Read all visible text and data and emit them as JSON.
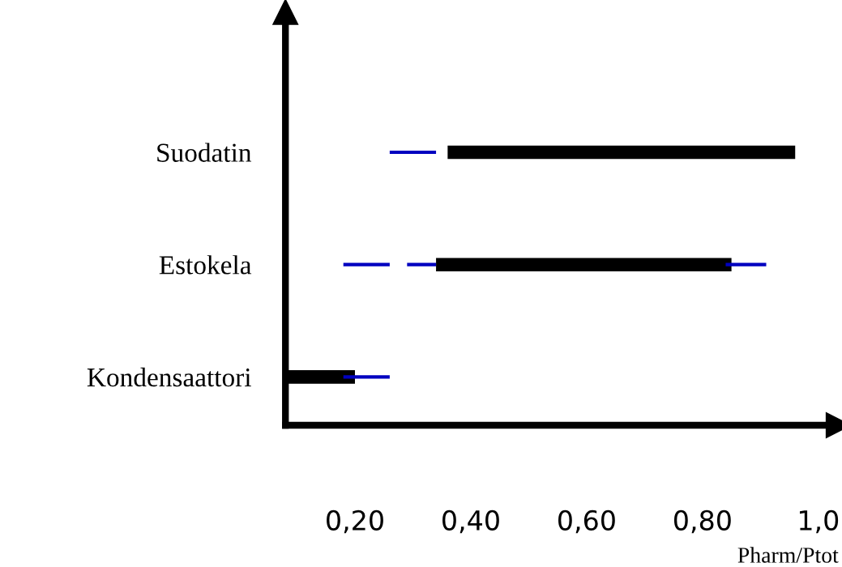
{
  "chart_data": {
    "type": "bar",
    "orientation": "horizontal",
    "categories": [
      "Suodatin",
      "Estokela",
      "Kondensaattori"
    ],
    "series": [
      {
        "color": "#000000",
        "base": [
          0.36,
          0.34,
          0.08
        ],
        "values": [
          0.6,
          0.51,
          0.12
        ]
      },
      {
        "color": "#0000c0",
        "base": [
          0.26,
          0.18,
          0.18
        ],
        "values": [
          0.08,
          0.08,
          0.08
        ]
      },
      {
        "color": "#0000c0",
        "base": [
          null,
          0.29,
          null
        ],
        "values": [
          null,
          0.05,
          null
        ]
      },
      {
        "color": "#0000c0",
        "base": [
          null,
          0.84,
          null
        ],
        "values": [
          null,
          0.07,
          null
        ]
      }
    ],
    "xlim": [
      0.08,
      1.035
    ],
    "xticks": [
      {
        "value": 0.2,
        "label": "0,20"
      },
      {
        "value": 0.4,
        "label": "0,40"
      },
      {
        "value": 0.6,
        "label": "0,60"
      },
      {
        "value": 0.8,
        "label": "0,80"
      },
      {
        "value": 1.0,
        "label": "1,0"
      }
    ],
    "xlabel": "Pharm/Ptot",
    "grid": false,
    "legend": false
  }
}
